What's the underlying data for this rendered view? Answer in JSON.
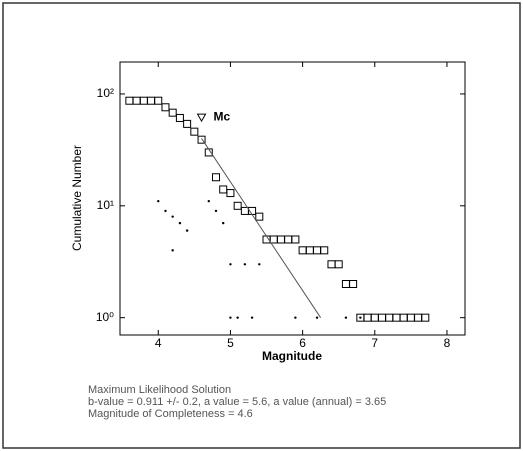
{
  "chart_data": {
    "type": "scatter",
    "log_y": true,
    "xlabel": "Magnitude",
    "ylabel": "Cumulative Number",
    "xlim": [
      3.47,
      8.25
    ],
    "ylim": [
      0.7,
      193
    ],
    "xticks": [
      4,
      5,
      6,
      7,
      8
    ],
    "yticks": [
      {
        "value": 1,
        "label": "10⁰"
      },
      {
        "value": 10,
        "label": "10¹"
      },
      {
        "value": 100,
        "label": "10²"
      }
    ],
    "series": [
      {
        "marker": "square",
        "color": "#000000",
        "x": [
          3.6,
          3.7,
          3.8,
          3.9,
          4.0,
          4.1,
          4.2,
          4.3,
          4.4,
          4.5,
          4.6,
          4.7,
          4.8,
          4.9,
          5.0,
          5.1,
          5.2,
          5.3,
          5.4,
          5.5,
          5.6,
          5.7,
          5.8,
          5.9,
          6.0,
          6.1,
          6.2,
          6.3,
          6.4,
          6.5,
          6.6,
          6.7,
          6.8,
          6.9,
          7.0,
          7.1,
          7.2,
          7.3,
          7.4,
          7.5,
          7.6,
          7.7
        ],
        "values": [
          87,
          87,
          87,
          87,
          87,
          76,
          68,
          61,
          54,
          46,
          39,
          30,
          18,
          14,
          13,
          10,
          9,
          9,
          8,
          5,
          5,
          5,
          5,
          5,
          4,
          4,
          4,
          4,
          3,
          3,
          2,
          2,
          1,
          1,
          1,
          1,
          1,
          1,
          1,
          1,
          1,
          1
        ]
      },
      {
        "marker": "dot",
        "color": "#000000",
        "x": [
          4.0,
          4.1,
          4.2,
          4.3,
          4.4,
          4.7,
          4.8,
          4.9,
          4.2,
          5.0,
          5.2,
          5.4,
          5.0,
          5.1,
          5.3,
          5.9,
          6.2,
          6.6,
          6.8
        ],
        "values": [
          11,
          9,
          8,
          7,
          6,
          11,
          9,
          7,
          4,
          3,
          3,
          3,
          1,
          1,
          1,
          1,
          1,
          1,
          1
        ]
      },
      {
        "marker": "line",
        "color": "#555555",
        "x": [
          4.6,
          6.25
        ],
        "values": [
          40,
          1
        ]
      }
    ],
    "mc": {
      "label": "Mc",
      "x": 4.6,
      "value": 62,
      "color": "#000000"
    },
    "notes": [
      "Maximum Likelihood Solution",
      "b-value = 0.911 +/- 0.2,  a value = 5.6,  a value (annual) = 3.65",
      "Magnitude of Completeness = 4.6"
    ]
  }
}
